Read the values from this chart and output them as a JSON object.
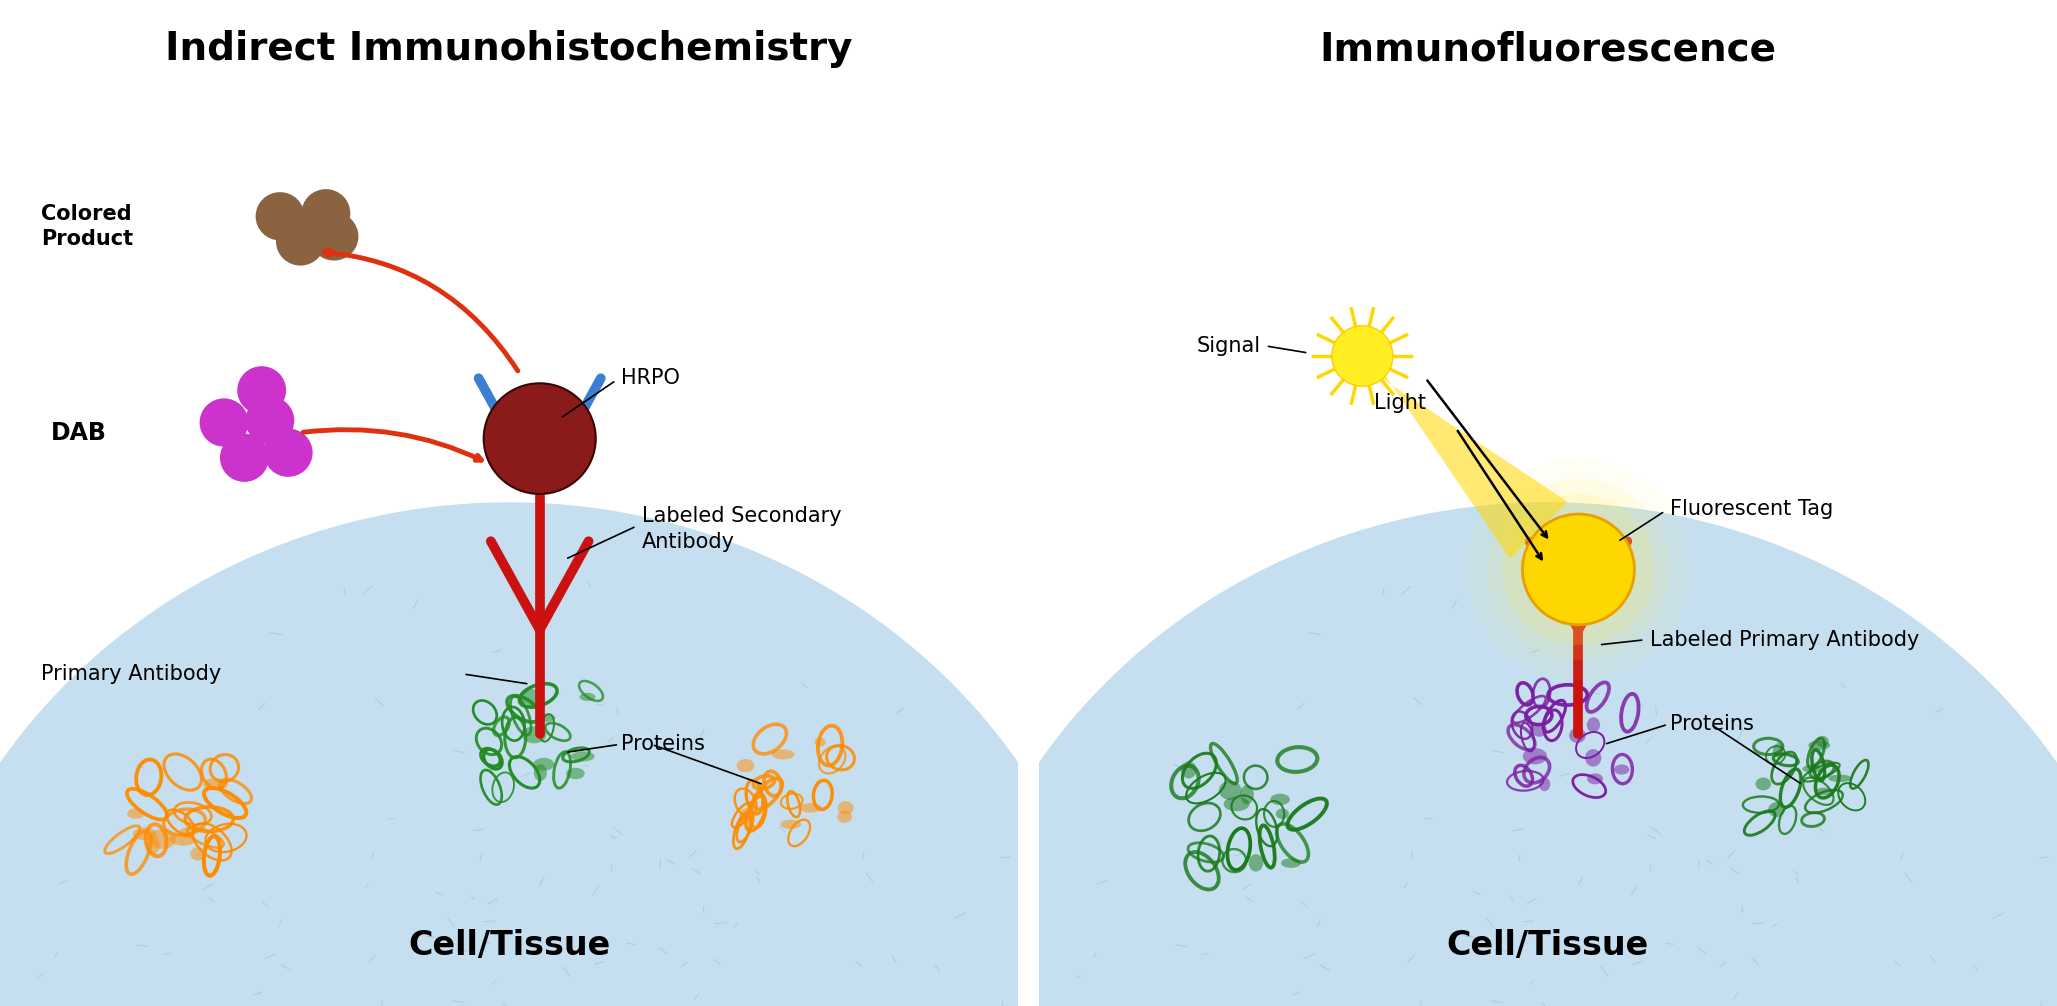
{
  "background_color": "#ffffff",
  "title_ihc": "Indirect Immunohistochemistry",
  "title_if": "Immunofluorescence",
  "title_fontsize": 28,
  "title_fontweight": "bold",
  "label_fontsize": 15,
  "cell_tissue_fontsize": 24,
  "cell_tissue_fontweight": "bold",
  "colors": {
    "blue_ab": "#3a7fd4",
    "red_ab": "#cc1111",
    "maroon_hrpo": "#8b1a1a",
    "brown_dots": "#8b6340",
    "purple_dab": "#cc33cc",
    "orange_protein": "#ff8c00",
    "green_protein": "#228b22",
    "purple_protein": "#7b1fa2",
    "green_protein_if": "#1a7a1a",
    "cell_fill": "#c5dff0",
    "arrow_red": "#e03010",
    "yellow_tag": "#ffd700",
    "yellow_glow": "#ffee55"
  },
  "panel_labels": {
    "colored_product": "Colored\nProduct",
    "dab": "DAB",
    "hrpo": "HRPO",
    "labeled_secondary": "Labeled Secondary\nAntibody",
    "primary_antibody": "Primary Antibody",
    "proteins_ihc": "Proteins",
    "cell_tissue_ihc": "Cell/Tissue",
    "signal": "Signal",
    "fluorescent_tag": "Fluorescent Tag",
    "light": "Light",
    "labeled_primary": "Labeled Primary Antibody",
    "proteins_if": "Proteins",
    "cell_tissue_if": "Cell/Tissue"
  }
}
